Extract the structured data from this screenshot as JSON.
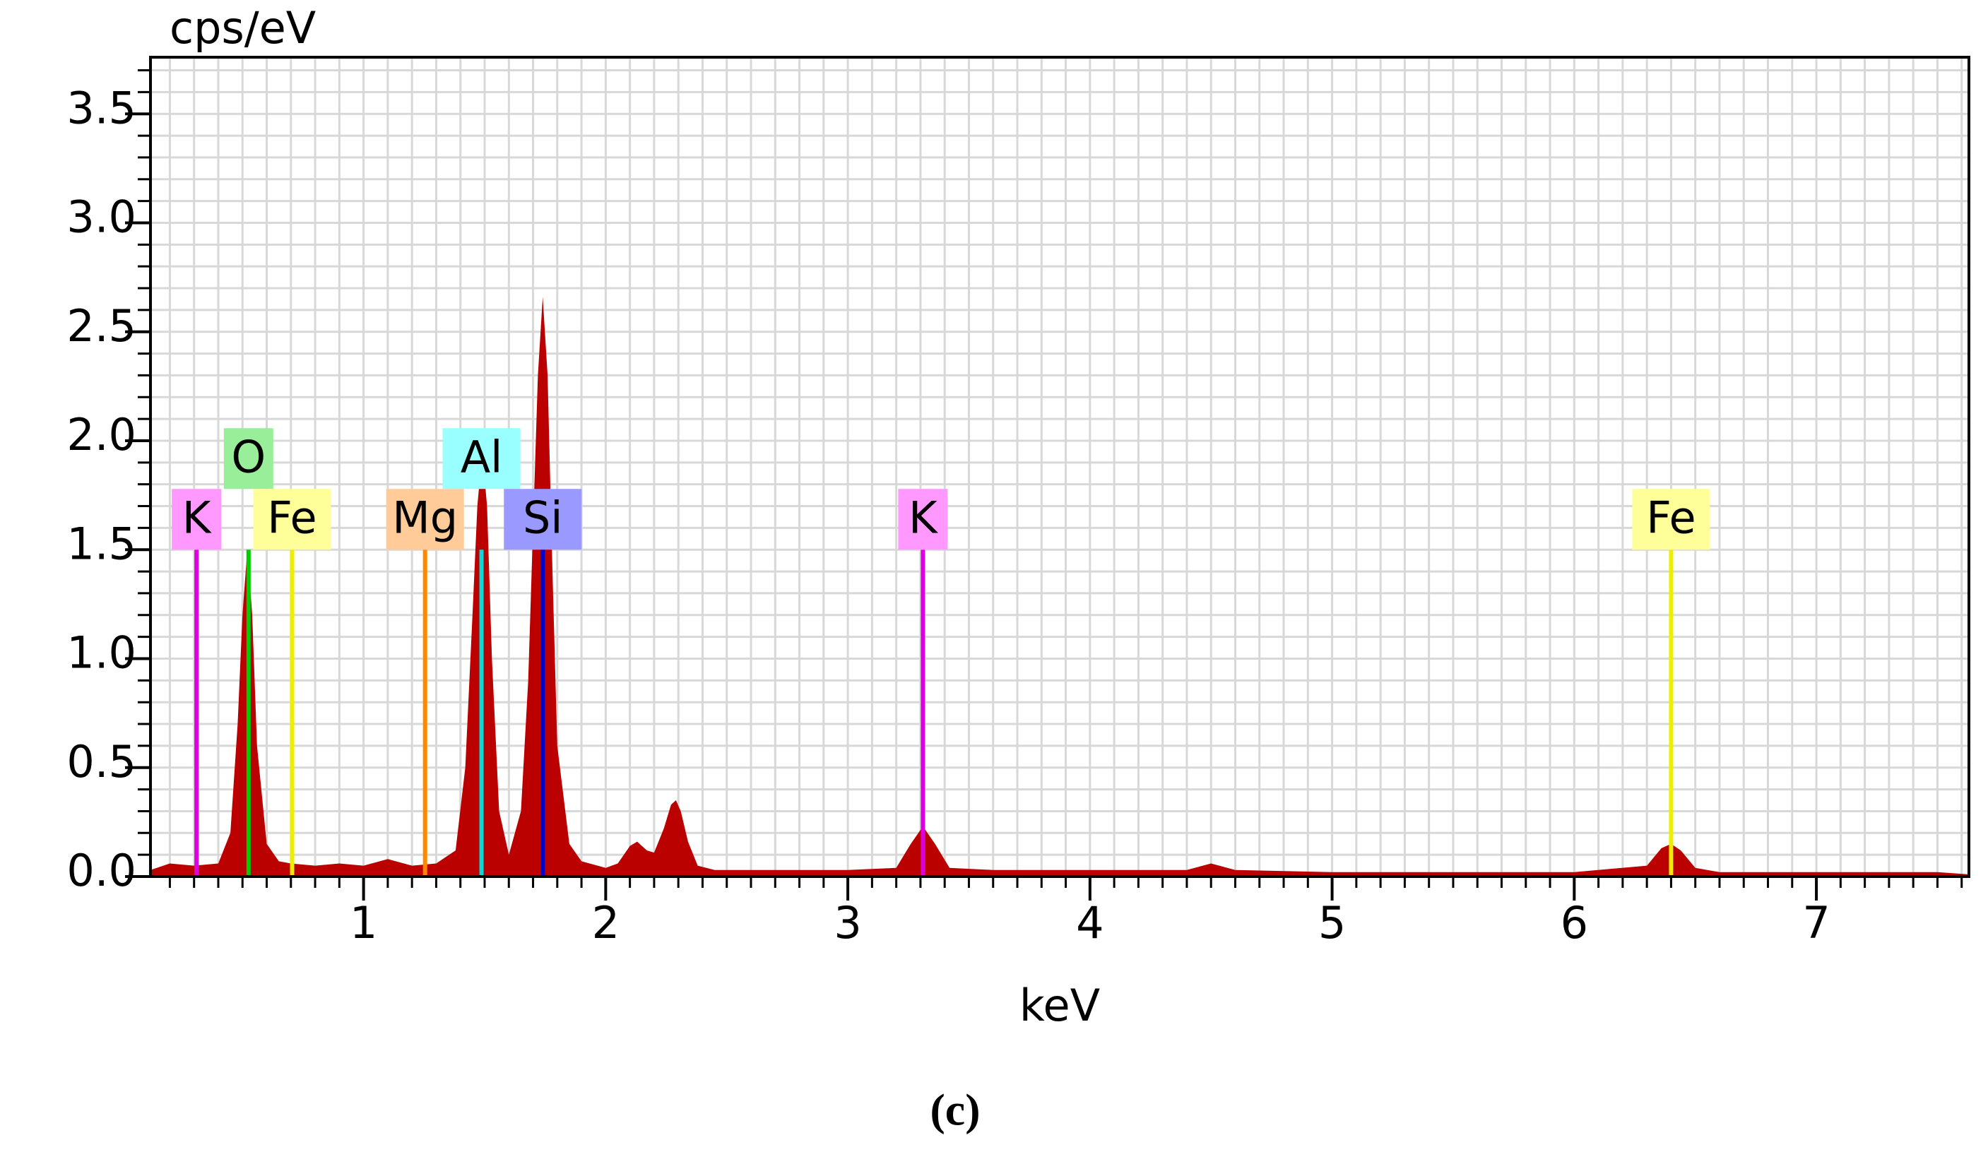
{
  "chart_data": {
    "type": "spectrum",
    "y_label": "cps/eV",
    "x_label": "keV",
    "caption": "(c)",
    "xlim": [
      0.12,
      7.63
    ],
    "ylim": [
      0,
      3.76
    ],
    "xticks": [
      1,
      2,
      3,
      4,
      5,
      6,
      7
    ],
    "yticks": [
      {
        "value": 0,
        "label": "0.0"
      },
      0.5,
      {
        "value": 1,
        "label": "1.0"
      },
      1.5,
      {
        "value": 2,
        "label": "2.0"
      },
      2.5,
      {
        "value": 3,
        "label": "3.0"
      },
      3.5
    ],
    "grid": true,
    "color": "#bb0000",
    "x": [
      0.12,
      0.2,
      0.3,
      0.4,
      0.45,
      0.48,
      0.5,
      0.52,
      0.54,
      0.56,
      0.6,
      0.65,
      0.7,
      0.8,
      0.9,
      1.0,
      1.1,
      1.2,
      1.3,
      1.38,
      1.42,
      1.45,
      1.47,
      1.49,
      1.51,
      1.53,
      1.56,
      1.6,
      1.65,
      1.68,
      1.7,
      1.72,
      1.74,
      1.76,
      1.78,
      1.8,
      1.85,
      1.9,
      2.0,
      2.05,
      2.1,
      2.13,
      2.17,
      2.2,
      2.24,
      2.27,
      2.29,
      2.31,
      2.34,
      2.38,
      2.45,
      2.6,
      3.0,
      3.2,
      3.26,
      3.31,
      3.36,
      3.42,
      3.6,
      4.0,
      4.4,
      4.5,
      4.6,
      5.0,
      5.5,
      6.0,
      6.3,
      6.36,
      6.4,
      6.44,
      6.5,
      6.6,
      7.0,
      7.5,
      7.63
    ],
    "values": [
      0.03,
      0.06,
      0.05,
      0.06,
      0.2,
      0.7,
      1.2,
      1.5,
      1.2,
      0.6,
      0.15,
      0.07,
      0.06,
      0.05,
      0.06,
      0.05,
      0.08,
      0.05,
      0.06,
      0.12,
      0.5,
      1.2,
      1.7,
      1.95,
      1.7,
      1.0,
      0.3,
      0.1,
      0.3,
      0.9,
      1.6,
      2.3,
      2.66,
      2.3,
      1.4,
      0.6,
      0.15,
      0.07,
      0.04,
      0.06,
      0.14,
      0.16,
      0.12,
      0.11,
      0.22,
      0.33,
      0.35,
      0.3,
      0.16,
      0.05,
      0.03,
      0.03,
      0.03,
      0.04,
      0.15,
      0.23,
      0.15,
      0.04,
      0.03,
      0.03,
      0.03,
      0.06,
      0.03,
      0.02,
      0.02,
      0.02,
      0.05,
      0.13,
      0.15,
      0.12,
      0.04,
      0.02,
      0.02,
      0.02,
      0.01
    ],
    "markers": [
      {
        "name": "K",
        "x": 0.31,
        "height": 1.5,
        "color": "#dd00dd",
        "label_color": "#ff99ff"
      },
      {
        "name": "O",
        "x": 0.525,
        "height": 1.5,
        "color": "#00cc00",
        "label_color": "#99ee99"
      },
      {
        "name": "Fe",
        "x": 0.705,
        "height": 1.5,
        "color": "#eeee00",
        "label_color": "#ffff99"
      },
      {
        "name": "Mg",
        "x": 1.254,
        "height": 1.5,
        "color": "#ff8800",
        "label_color": "#ffcc99"
      },
      {
        "name": "Al",
        "x": 1.487,
        "height": 1.5,
        "color": "#00dddd",
        "label_color": "#99ffff"
      },
      {
        "name": "Si",
        "x": 1.74,
        "height": 1.5,
        "color": "#0000cc",
        "label_color": "#9999ff"
      },
      {
        "name": "K",
        "x": 3.31,
        "height": 1.5,
        "color": "#dd00dd",
        "label_color": "#ff99ff"
      },
      {
        "name": "Fe",
        "x": 6.4,
        "height": 1.5,
        "color": "#eeee00",
        "label_color": "#ffff99"
      }
    ]
  }
}
